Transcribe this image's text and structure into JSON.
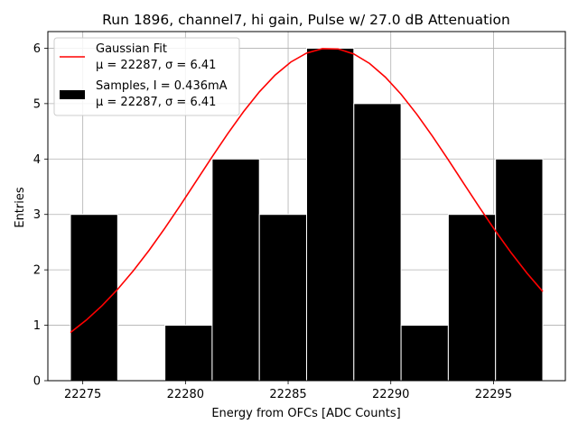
{
  "chart_data": {
    "type": "bar",
    "title": "Run 1896, channel7, hi gain, Pulse w/ 27.0 dB Attenuation",
    "xlabel": "Energy from OFCs [ADC Counts]",
    "ylabel": "Entries",
    "xlim": [
      22273.3,
      22298.5
    ],
    "ylim": [
      0,
      6.3
    ],
    "x_ticks": [
      22275,
      22280,
      22285,
      22290,
      22295
    ],
    "y_ticks": [
      0,
      1,
      2,
      3,
      4,
      5,
      6
    ],
    "grid": true,
    "legend_position": "top-left",
    "histogram": {
      "name": "Samples, I = 0.436mA",
      "name_line2": "μ = 22287, σ = 6.41",
      "color": "#000000",
      "bins": [
        {
          "x0": 22274.4,
          "x1": 22276.7,
          "count": 3
        },
        {
          "x0": 22276.7,
          "x1": 22279.0,
          "count": 0
        },
        {
          "x0": 22279.0,
          "x1": 22281.3,
          "count": 1
        },
        {
          "x0": 22281.3,
          "x1": 22283.6,
          "count": 4
        },
        {
          "x0": 22283.6,
          "x1": 22285.9,
          "count": 3
        },
        {
          "x0": 22285.9,
          "x1": 22288.2,
          "count": 6
        },
        {
          "x0": 22288.2,
          "x1": 22290.5,
          "count": 5
        },
        {
          "x0": 22290.5,
          "x1": 22292.8,
          "count": 1
        },
        {
          "x0": 22292.8,
          "x1": 22295.1,
          "count": 3
        },
        {
          "x0": 22295.1,
          "x1": 22297.4,
          "count": 4
        }
      ]
    },
    "fit": {
      "name": "Gaussian Fit",
      "name_line2": "μ = 22287, σ = 6.41",
      "color": "#ff0000",
      "mu": 22287,
      "sigma": 6.41,
      "amplitude": 6.0,
      "x_range": [
        22274.4,
        22297.4
      ]
    }
  }
}
